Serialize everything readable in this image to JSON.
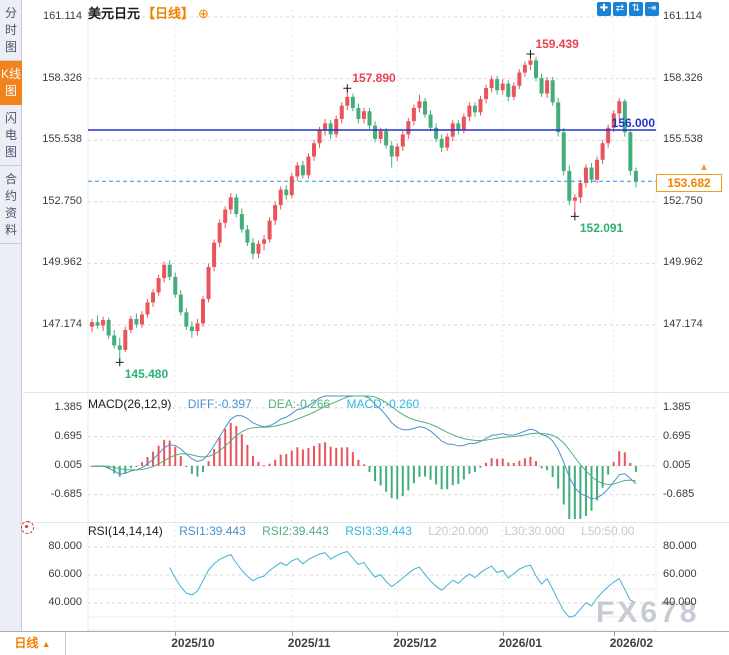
{
  "header": {
    "symbol": "美元日元",
    "period_tag": "【日线】",
    "settings_icon": "⊕",
    "toolbar": [
      {
        "name": "crosshair-tool-button",
        "glyph": "✚"
      },
      {
        "name": "zoom-x-tool-button",
        "glyph": "⇄"
      },
      {
        "name": "zoom-y-tool-button",
        "glyph": "⇅"
      },
      {
        "name": "pan-right-tool-button",
        "glyph": "⇥"
      }
    ]
  },
  "sidebar": {
    "tabs": [
      {
        "label": "分时图",
        "active": false
      },
      {
        "label": "K线图",
        "active": true
      },
      {
        "label": "闪电图",
        "active": false
      },
      {
        "label": "合约资料",
        "active": false
      }
    ]
  },
  "bottom_bar": {
    "period_label": "日线",
    "dropdown_arrow": "▲"
  },
  "watermark": "FX678",
  "colors": {
    "up": "#e9545c",
    "down": "#43ad7b",
    "grid": "#d9d9d9",
    "vgrid": "#e8eaef",
    "resistance_line": "#2433cc",
    "last_price_line": "#2b8fe3",
    "last_price_tag": "#f59a23",
    "diff_line": "#4a90d2",
    "dea_line": "#4db07d",
    "rsi_line": "#41b2d8",
    "annotation_high": "#e8414d",
    "annotation_low": "#2eaf74",
    "accent_orange": "#f0831e",
    "toolbar_blue": "#1b82d4"
  },
  "chart_data": [
    {
      "type": "candlestick",
      "symbol": "美元日元",
      "period": "日线",
      "y_axis": {
        "labels": [
          "161.114",
          "158.326",
          "155.538",
          "152.750",
          "149.962",
          "147.174"
        ],
        "values": [
          161.114,
          158.326,
          155.538,
          152.75,
          149.962,
          147.174
        ]
      },
      "x_axis": {
        "labels": [
          "2025/10",
          "2025/11",
          "2025/12",
          "2026/01",
          "2026/02"
        ],
        "candle_indices": [
          15,
          36,
          55,
          74,
          94
        ]
      },
      "lines": {
        "resistance": {
          "label": "156.000",
          "value": 156.0
        },
        "last_price": {
          "label": "153.682",
          "value": 153.682,
          "marker": "▲"
        }
      },
      "annotations": [
        {
          "label": "145.480",
          "price": 145.48,
          "candle_index": 5,
          "kind": "low"
        },
        {
          "label": "157.890",
          "price": 157.89,
          "candle_index": 46,
          "kind": "high"
        },
        {
          "label": "159.439",
          "price": 159.439,
          "candle_index": 79,
          "kind": "high"
        },
        {
          "label": "152.091",
          "price": 152.091,
          "candle_index": 87,
          "kind": "low"
        }
      ],
      "candles": [
        [
          147.1,
          147.45,
          146.85,
          147.3
        ],
        [
          147.3,
          147.6,
          147.0,
          147.15
        ],
        [
          147.15,
          147.55,
          146.9,
          147.4
        ],
        [
          147.4,
          147.5,
          146.55,
          146.7
        ],
        [
          146.7,
          146.95,
          146.1,
          146.25
        ],
        [
          146.25,
          146.6,
          145.48,
          146.05
        ],
        [
          146.05,
          147.1,
          145.95,
          146.95
        ],
        [
          146.95,
          147.6,
          146.8,
          147.45
        ],
        [
          147.45,
          147.7,
          147.05,
          147.2
        ],
        [
          147.2,
          147.8,
          147.05,
          147.65
        ],
        [
          147.65,
          148.35,
          147.5,
          148.2
        ],
        [
          148.2,
          148.8,
          148.0,
          148.65
        ],
        [
          148.65,
          149.45,
          148.5,
          149.3
        ],
        [
          149.3,
          150.05,
          149.1,
          149.9
        ],
        [
          149.9,
          150.1,
          149.2,
          149.35
        ],
        [
          149.35,
          149.55,
          148.4,
          148.55
        ],
        [
          148.55,
          148.75,
          147.6,
          147.75
        ],
        [
          147.75,
          147.95,
          146.95,
          147.1
        ],
        [
          147.1,
          147.35,
          146.6,
          146.9
        ],
        [
          146.9,
          147.45,
          146.7,
          147.25
        ],
        [
          147.25,
          148.5,
          147.1,
          148.35
        ],
        [
          148.35,
          149.95,
          148.2,
          149.8
        ],
        [
          149.8,
          151.05,
          149.6,
          150.9
        ],
        [
          150.9,
          151.95,
          150.7,
          151.8
        ],
        [
          151.8,
          152.55,
          151.55,
          152.4
        ],
        [
          152.4,
          153.15,
          152.2,
          152.95
        ],
        [
          152.95,
          153.1,
          152.05,
          152.2
        ],
        [
          152.2,
          152.45,
          151.35,
          151.5
        ],
        [
          151.5,
          151.7,
          150.75,
          150.9
        ],
        [
          150.9,
          151.1,
          150.15,
          150.4
        ],
        [
          150.4,
          151.0,
          150.2,
          150.85
        ],
        [
          150.85,
          151.25,
          150.55,
          151.05
        ],
        [
          151.05,
          152.05,
          150.9,
          151.9
        ],
        [
          151.9,
          152.75,
          151.7,
          152.6
        ],
        [
          152.6,
          153.45,
          152.4,
          153.3
        ],
        [
          153.3,
          153.5,
          152.85,
          153.05
        ],
        [
          153.05,
          154.05,
          152.9,
          153.9
        ],
        [
          153.9,
          154.55,
          153.7,
          154.4
        ],
        [
          154.4,
          154.6,
          153.8,
          153.95
        ],
        [
          153.95,
          154.95,
          153.8,
          154.8
        ],
        [
          154.8,
          155.55,
          154.6,
          155.4
        ],
        [
          155.4,
          156.15,
          155.2,
          156.0
        ],
        [
          156.0,
          156.5,
          155.75,
          156.3
        ],
        [
          156.3,
          156.45,
          155.6,
          155.8
        ],
        [
          155.8,
          156.65,
          155.65,
          156.5
        ],
        [
          156.5,
          157.25,
          156.3,
          157.1
        ],
        [
          157.1,
          157.89,
          156.9,
          157.5
        ],
        [
          157.5,
          157.65,
          156.85,
          157.0
        ],
        [
          157.0,
          157.2,
          156.3,
          156.5
        ],
        [
          156.5,
          157.0,
          156.3,
          156.85
        ],
        [
          156.85,
          157.0,
          156.05,
          156.2
        ],
        [
          156.2,
          156.4,
          155.45,
          155.6
        ],
        [
          155.6,
          156.1,
          155.4,
          155.95
        ],
        [
          155.95,
          156.1,
          155.15,
          155.3
        ],
        [
          155.3,
          155.5,
          154.3,
          154.8
        ],
        [
          154.8,
          155.4,
          154.6,
          155.25
        ],
        [
          155.25,
          155.95,
          155.05,
          155.8
        ],
        [
          155.8,
          156.55,
          155.6,
          156.4
        ],
        [
          156.4,
          157.15,
          156.2,
          157.0
        ],
        [
          157.0,
          157.6,
          156.8,
          157.3
        ],
        [
          157.3,
          157.45,
          156.55,
          156.7
        ],
        [
          156.7,
          156.9,
          155.95,
          156.1
        ],
        [
          156.1,
          156.3,
          155.45,
          155.6
        ],
        [
          155.6,
          155.8,
          155.0,
          155.2
        ],
        [
          155.2,
          155.85,
          155.05,
          155.7
        ],
        [
          155.7,
          156.45,
          155.5,
          156.3
        ],
        [
          156.3,
          156.45,
          155.8,
          156.0
        ],
        [
          156.0,
          156.75,
          155.85,
          156.6
        ],
        [
          156.6,
          157.25,
          156.4,
          157.1
        ],
        [
          157.1,
          157.25,
          156.6,
          156.8
        ],
        [
          156.8,
          157.55,
          156.65,
          157.4
        ],
        [
          157.4,
          158.05,
          157.2,
          157.9
        ],
        [
          157.9,
          158.45,
          157.7,
          158.3
        ],
        [
          158.3,
          158.45,
          157.6,
          157.8
        ],
        [
          157.8,
          158.3,
          157.6,
          158.1
        ],
        [
          158.1,
          158.25,
          157.3,
          157.5
        ],
        [
          157.5,
          158.15,
          157.35,
          158.0
        ],
        [
          158.0,
          158.75,
          157.85,
          158.6
        ],
        [
          158.6,
          159.1,
          158.4,
          158.95
        ],
        [
          158.95,
          159.439,
          158.7,
          159.15
        ],
        [
          159.15,
          159.3,
          158.2,
          158.35
        ],
        [
          158.35,
          158.55,
          157.5,
          157.65
        ],
        [
          157.65,
          158.4,
          157.45,
          158.25
        ],
        [
          158.25,
          158.4,
          157.1,
          157.25
        ],
        [
          157.25,
          157.45,
          155.7,
          155.9
        ],
        [
          155.9,
          156.1,
          153.95,
          154.15
        ],
        [
          154.15,
          154.4,
          152.6,
          152.8
        ],
        [
          152.8,
          153.1,
          152.091,
          152.95
        ],
        [
          152.95,
          153.75,
          152.7,
          153.6
        ],
        [
          153.6,
          154.45,
          153.4,
          154.3
        ],
        [
          154.3,
          154.5,
          153.6,
          153.75
        ],
        [
          153.75,
          154.8,
          153.6,
          154.65
        ],
        [
          154.65,
          155.55,
          154.45,
          155.4
        ],
        [
          155.4,
          156.25,
          155.2,
          156.1
        ],
        [
          156.1,
          156.9,
          155.9,
          156.75
        ],
        [
          156.75,
          157.45,
          156.5,
          157.3
        ],
        [
          157.3,
          157.4,
          155.7,
          155.9
        ],
        [
          155.9,
          156.05,
          153.95,
          154.15
        ],
        [
          154.15,
          154.3,
          153.4,
          153.682
        ]
      ]
    },
    {
      "type": "macd",
      "params": "MACD(26,12,9)",
      "settings": {
        "slow": 26,
        "fast": 12,
        "signal": 9
      },
      "readouts": {
        "diff": "DIFF:-0.397",
        "dea": "DEA:-0.266",
        "macd": "MACD:-0.260"
      },
      "y_axis": {
        "labels": [
          "1.385",
          "0.695",
          "0.005",
          "-0.685"
        ],
        "values": [
          1.385,
          0.695,
          0.005,
          -0.685
        ]
      }
    },
    {
      "type": "rsi",
      "params": "RSI(14,14,14)",
      "period": 14,
      "readouts": {
        "rsi1": "RSI1:39.443",
        "rsi2": "RSI2:39.443",
        "rsi3": "RSI3:39.443",
        "l20": "L20:20.000",
        "l30": "L30:30.000",
        "l50": "L50:50.00"
      },
      "levels": [
        50,
        30,
        20
      ],
      "y_axis": {
        "labels": [
          "80.000",
          "60.000",
          "40.000"
        ],
        "values": [
          80,
          60,
          40
        ]
      }
    }
  ]
}
